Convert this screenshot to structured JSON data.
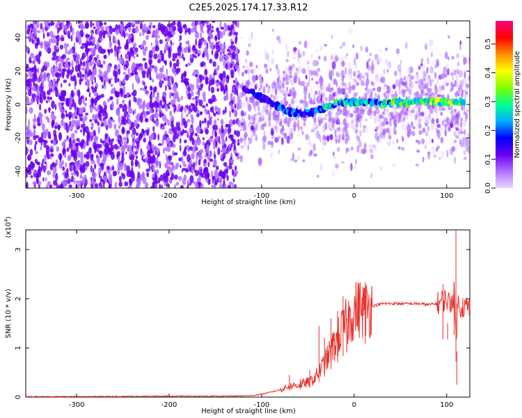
{
  "title": "C2E5.2025.174.17.33.R12",
  "chart_data": [
    {
      "type": "heatmap",
      "xlabel": "Height of straight line (km)",
      "ylabel": "Frequency (Hz)",
      "xlim": [
        -355,
        125
      ],
      "ylim": [
        -50,
        50
      ],
      "xticks": [
        -300,
        -200,
        -100,
        0,
        100
      ],
      "yticks": [
        -40,
        -20,
        0,
        20,
        40
      ],
      "colorbar": {
        "label": "Normalized spectral amplitude",
        "range": [
          0,
          0.58
        ],
        "ticks": [
          "0.0",
          "0.1",
          "0.2",
          "0.3",
          "0.4",
          "0.5"
        ],
        "colors": [
          "#e8d8ff",
          "#b070ff",
          "#6a00f0",
          "#0000ff",
          "#00b0ff",
          "#00ff90",
          "#80ff00",
          "#ffff00",
          "#ff9000",
          "#ff0000",
          "#ff0080"
        ]
      },
      "regions": [
        {
          "name": "dense noise",
          "x_range": [
            -355,
            -125
          ],
          "freq_range": [
            -50,
            50
          ]
        },
        {
          "name": "sparse noise",
          "x_range": [
            -125,
            125
          ],
          "freq_range": [
            -50,
            50
          ]
        }
      ],
      "signal_trace": {
        "x": [
          -120,
          -110,
          -100,
          -90,
          -80,
          -70,
          -60,
          -50,
          -40,
          -30,
          -20,
          -10,
          0,
          10,
          20,
          30,
          40,
          50,
          60,
          70,
          80,
          90,
          100,
          110,
          120
        ],
        "freq": [
          9,
          7,
          4,
          1,
          -2,
          -4,
          -5,
          -5,
          -4,
          -1,
          1,
          1.5,
          1.5,
          1.5,
          1,
          1,
          1,
          1.5,
          1,
          1.5,
          1.5,
          1.5,
          1,
          1.5,
          1.5
        ],
        "peak_amplitude": [
          0.15,
          0.18,
          0.2,
          0.2,
          0.22,
          0.2,
          0.2,
          0.22,
          0.25,
          0.3,
          0.32,
          0.3,
          0.3,
          0.28,
          0.3,
          0.32,
          0.34,
          0.35,
          0.34,
          0.35,
          0.36,
          0.35,
          0.38,
          0.34,
          0.36
        ]
      }
    },
    {
      "type": "line",
      "xlabel": "Height of straight line (km)",
      "ylabel": "SNR (10 * v/v)",
      "multiplier": "(x10",
      "multiplier_exp": "4",
      "multiplier_close": ")",
      "xlim": [
        -355,
        125
      ],
      "ylim": [
        0,
        3.4
      ],
      "xticks": [
        -300,
        -200,
        -100,
        0,
        100
      ],
      "yticks": [
        0,
        1,
        2,
        3
      ],
      "color": "#e8312b",
      "series": [
        {
          "x": [
            -355,
            -300,
            -200,
            -130,
            -110,
            -100,
            -90,
            -80,
            -70,
            -60,
            -50,
            -45,
            -40,
            -35,
            -30,
            -25,
            -20,
            -15,
            -10,
            -5,
            0,
            5,
            10,
            15,
            20,
            25,
            30,
            40,
            50,
            60,
            70,
            80,
            90,
            95,
            100,
            103,
            105,
            108,
            110,
            112,
            115,
            120,
            125
          ],
          "y": [
            0.01,
            0.01,
            0.02,
            0.02,
            0.03,
            0.06,
            0.1,
            0.15,
            0.22,
            0.25,
            0.3,
            0.35,
            0.45,
            0.6,
            0.75,
            0.95,
            1.1,
            1.3,
            1.45,
            1.6,
            1.75,
            1.8,
            1.8,
            1.82,
            1.85,
            1.88,
            1.9,
            1.9,
            1.9,
            1.9,
            1.9,
            1.88,
            1.9,
            1.95,
            2.0,
            1.9,
            1.95,
            2.1,
            1.2,
            1.9,
            1.85,
            1.84,
            1.82
          ]
        }
      ],
      "spikes": [
        {
          "x": -70,
          "y": 0.45
        },
        {
          "x": -58,
          "y": 0.38
        },
        {
          "x": -48,
          "y": 0.55
        },
        {
          "x": -38,
          "y": 1.45
        },
        {
          "x": -32,
          "y": 1.2
        },
        {
          "x": -25,
          "y": 1.6
        },
        {
          "x": -18,
          "y": 1.75
        },
        {
          "x": -12,
          "y": 2.05
        },
        {
          "x": -8,
          "y": 1.6
        },
        {
          "x": 12,
          "y": 2.0
        },
        {
          "x": 96,
          "y": 2.3
        },
        {
          "x": 101,
          "y": 1.5
        },
        {
          "x": 108,
          "y": 2.35
        },
        {
          "x": 110,
          "y": 3.4
        },
        {
          "x": 111,
          "y": 0.25
        }
      ]
    }
  ]
}
